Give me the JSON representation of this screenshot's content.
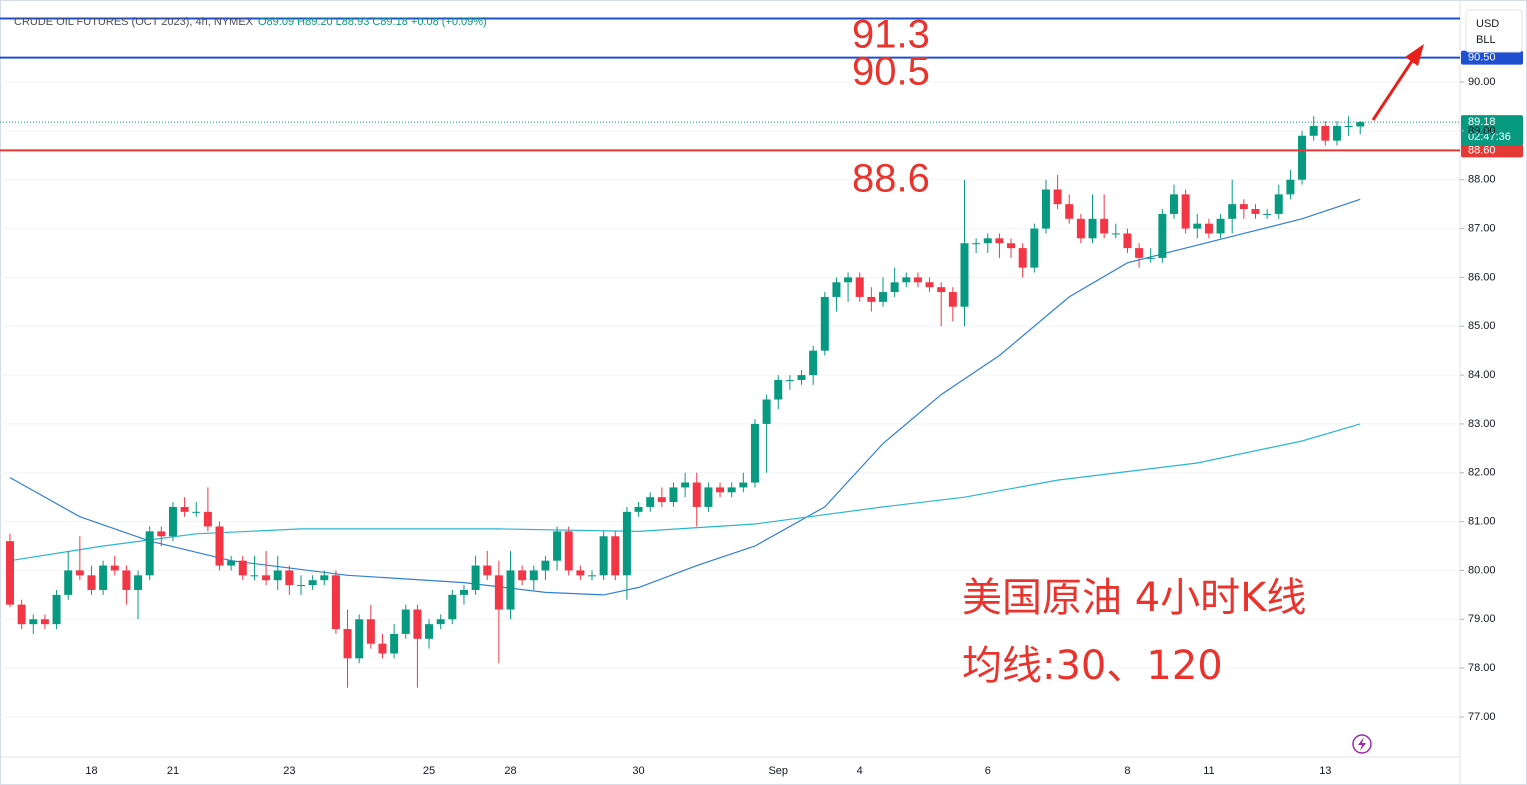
{
  "header": {
    "title": "CRUDE OIL FUTURES (OCT 2023), 4h, NYMEX",
    "ohlc_text": "O89.09 H89.20 L88.93 C89.18 +0.08 (+0.09%)"
  },
  "currency": "USD",
  "unit": "BLL",
  "chart_data": {
    "type": "candlestick",
    "ylim": [
      76.18,
      91.68
    ],
    "yticks": [
      {
        "value": 77,
        "label": "77.00"
      },
      {
        "value": 78,
        "label": "78.00"
      },
      {
        "value": 79,
        "label": "79.00"
      },
      {
        "value": 80,
        "label": "80.00"
      },
      {
        "value": 81,
        "label": "81.00"
      },
      {
        "value": 82,
        "label": "82.00"
      },
      {
        "value": 83,
        "label": "83.00"
      },
      {
        "value": 84,
        "label": "84.00"
      },
      {
        "value": 85,
        "label": "85.00"
      },
      {
        "value": 86,
        "label": "86.00"
      },
      {
        "value": 87,
        "label": "87.00"
      },
      {
        "value": 88,
        "label": "88.00"
      },
      {
        "value": 89,
        "label": "89.00"
      },
      {
        "value": 90,
        "label": "90.00"
      }
    ],
    "grid": true,
    "up_color": "#089981",
    "down_color": "#f23645",
    "categories": [
      null,
      null,
      null,
      null,
      null,
      null,
      null,
      "18",
      null,
      null,
      null,
      null,
      null,
      null,
      "21",
      null,
      null,
      null,
      null,
      null,
      null,
      null,
      null,
      null,
      "23",
      null,
      null,
      null,
      null,
      null,
      null,
      null,
      null,
      null,
      null,
      null,
      "25",
      null,
      null,
      null,
      null,
      null,
      null,
      "28",
      null,
      null,
      null,
      null,
      null,
      null,
      null,
      null,
      null,
      null,
      "30",
      null,
      null,
      null,
      null,
      null,
      null,
      null,
      null,
      null,
      null,
      null,
      "Sep",
      null,
      null,
      null,
      null,
      null,
      null,
      "4",
      null,
      null,
      null,
      null,
      null,
      null,
      null,
      null,
      null,
      null,
      "6",
      null,
      null,
      null,
      null,
      null,
      null,
      null,
      null,
      null,
      null,
      null,
      "8",
      null,
      null,
      null,
      null,
      null,
      null,
      "11",
      null,
      null,
      null,
      null,
      null,
      null,
      null,
      null,
      null,
      "13",
      null,
      null,
      null
    ],
    "ohlc": [
      [
        80.6,
        80.75,
        79.25,
        79.3
      ],
      [
        79.3,
        79.4,
        78.8,
        78.9
      ],
      [
        78.9,
        79.1,
        78.7,
        79.0
      ],
      [
        79.0,
        79.1,
        78.8,
        78.9
      ],
      [
        78.9,
        79.6,
        78.8,
        79.5
      ],
      [
        79.5,
        80.4,
        79.4,
        80.0
      ],
      [
        80.0,
        80.7,
        79.8,
        79.9
      ],
      [
        79.9,
        80.1,
        79.5,
        79.6
      ],
      [
        79.6,
        80.2,
        79.5,
        80.1
      ],
      [
        80.1,
        80.3,
        79.9,
        80.0
      ],
      [
        80.0,
        80.1,
        79.3,
        79.6
      ],
      [
        79.6,
        80.0,
        79.0,
        79.9
      ],
      [
        79.9,
        80.9,
        79.8,
        80.8
      ],
      [
        80.8,
        80.9,
        80.5,
        80.7
      ],
      [
        80.7,
        81.4,
        80.6,
        81.3
      ],
      [
        81.3,
        81.5,
        81.1,
        81.2
      ],
      [
        81.2,
        81.4,
        81.1,
        81.2
      ],
      [
        81.2,
        81.7,
        80.8,
        80.9
      ],
      [
        80.9,
        81.0,
        80.0,
        80.1
      ],
      [
        80.1,
        80.3,
        80.0,
        80.2
      ],
      [
        80.2,
        80.3,
        79.8,
        79.9
      ],
      [
        79.9,
        80.3,
        79.8,
        79.9
      ],
      [
        79.9,
        80.4,
        79.7,
        79.8
      ],
      [
        79.8,
        80.3,
        79.6,
        80.0
      ],
      [
        80.0,
        80.1,
        79.5,
        79.7
      ],
      [
        79.7,
        79.9,
        79.5,
        79.7
      ],
      [
        79.7,
        79.9,
        79.6,
        79.8
      ],
      [
        79.8,
        80.0,
        79.7,
        79.9
      ],
      [
        79.9,
        80.0,
        78.7,
        78.8
      ],
      [
        78.8,
        79.2,
        77.6,
        78.2
      ],
      [
        78.2,
        79.1,
        78.1,
        79.0
      ],
      [
        79.0,
        79.3,
        78.4,
        78.5
      ],
      [
        78.5,
        78.7,
        78.2,
        78.3
      ],
      [
        78.3,
        78.9,
        78.2,
        78.7
      ],
      [
        78.7,
        79.3,
        78.6,
        79.2
      ],
      [
        79.2,
        79.3,
        77.6,
        78.6
      ],
      [
        78.6,
        79.0,
        78.4,
        78.9
      ],
      [
        78.9,
        79.1,
        78.8,
        79.0
      ],
      [
        79.0,
        79.6,
        78.9,
        79.5
      ],
      [
        79.5,
        79.7,
        79.3,
        79.6
      ],
      [
        79.6,
        80.3,
        79.5,
        80.1
      ],
      [
        80.1,
        80.4,
        79.8,
        79.9
      ],
      [
        79.9,
        80.2,
        78.1,
        79.2
      ],
      [
        79.2,
        80.4,
        79.0,
        80.0
      ],
      [
        80.0,
        80.1,
        79.7,
        79.8
      ],
      [
        79.8,
        80.1,
        79.6,
        80.0
      ],
      [
        80.0,
        80.3,
        79.8,
        80.2
      ],
      [
        80.2,
        80.9,
        80.0,
        80.8
      ],
      [
        80.8,
        80.9,
        79.9,
        80.0
      ],
      [
        80.0,
        80.1,
        79.8,
        79.9
      ],
      [
        79.9,
        80.0,
        79.8,
        79.9
      ],
      [
        79.9,
        80.8,
        79.8,
        80.7
      ],
      [
        80.7,
        80.8,
        79.8,
        79.9
      ],
      [
        79.9,
        81.3,
        79.4,
        81.2
      ],
      [
        81.2,
        81.4,
        81.1,
        81.3
      ],
      [
        81.3,
        81.6,
        81.2,
        81.5
      ],
      [
        81.5,
        81.7,
        81.3,
        81.4
      ],
      [
        81.4,
        81.8,
        81.3,
        81.7
      ],
      [
        81.7,
        82.0,
        81.5,
        81.8
      ],
      [
        81.8,
        82.0,
        80.9,
        81.3
      ],
      [
        81.3,
        81.8,
        81.2,
        81.7
      ],
      [
        81.7,
        81.8,
        81.5,
        81.6
      ],
      [
        81.6,
        81.8,
        81.5,
        81.7
      ],
      [
        81.7,
        82.0,
        81.6,
        81.8
      ],
      [
        81.8,
        83.1,
        81.7,
        83.0
      ],
      [
        83.0,
        83.6,
        82.0,
        83.5
      ],
      [
        83.5,
        84.0,
        83.3,
        83.9
      ],
      [
        83.9,
        84.0,
        83.7,
        83.9
      ],
      [
        83.9,
        84.1,
        83.8,
        84.0
      ],
      [
        84.0,
        84.6,
        83.8,
        84.5
      ],
      [
        84.5,
        85.7,
        84.4,
        85.6
      ],
      [
        85.6,
        86.0,
        85.3,
        85.9
      ],
      [
        85.9,
        86.1,
        85.5,
        86.0
      ],
      [
        86.0,
        86.1,
        85.5,
        85.6
      ],
      [
        85.6,
        85.8,
        85.3,
        85.5
      ],
      [
        85.5,
        86.0,
        85.4,
        85.7
      ],
      [
        85.7,
        86.2,
        85.6,
        85.9
      ],
      [
        85.9,
        86.1,
        85.8,
        86.0
      ],
      [
        86.0,
        86.1,
        85.8,
        85.9
      ],
      [
        85.9,
        86.0,
        85.7,
        85.8
      ],
      [
        85.8,
        85.9,
        85.0,
        85.7
      ],
      [
        85.7,
        85.8,
        85.1,
        85.4
      ],
      [
        85.4,
        88.0,
        85.0,
        86.7
      ],
      [
        86.7,
        86.8,
        86.5,
        86.7
      ],
      [
        86.7,
        86.9,
        86.5,
        86.8
      ],
      [
        86.8,
        86.9,
        86.4,
        86.7
      ],
      [
        86.7,
        86.8,
        86.4,
        86.6
      ],
      [
        86.6,
        86.7,
        86.0,
        86.2
      ],
      [
        86.2,
        87.1,
        86.1,
        87.0
      ],
      [
        87.0,
        88.0,
        86.9,
        87.8
      ],
      [
        87.8,
        88.1,
        87.4,
        87.5
      ],
      [
        87.5,
        87.7,
        87.1,
        87.2
      ],
      [
        87.2,
        87.3,
        86.7,
        86.8
      ],
      [
        86.8,
        87.7,
        86.7,
        87.2
      ],
      [
        87.2,
        87.7,
        86.8,
        86.9
      ],
      [
        86.9,
        87.1,
        86.8,
        86.9
      ],
      [
        86.9,
        87.0,
        86.5,
        86.6
      ],
      [
        86.6,
        86.7,
        86.2,
        86.4
      ],
      [
        86.4,
        86.6,
        86.3,
        86.4
      ],
      [
        86.4,
        87.4,
        86.3,
        87.3
      ],
      [
        87.3,
        87.9,
        87.2,
        87.7
      ],
      [
        87.7,
        87.8,
        86.9,
        87.0
      ],
      [
        87.0,
        87.3,
        86.8,
        87.1
      ],
      [
        87.1,
        87.2,
        86.8,
        86.9
      ],
      [
        86.9,
        87.3,
        86.8,
        87.2
      ],
      [
        87.2,
        88.0,
        86.9,
        87.5
      ],
      [
        87.5,
        87.6,
        87.2,
        87.4
      ],
      [
        87.4,
        87.5,
        87.2,
        87.3
      ],
      [
        87.3,
        87.4,
        87.2,
        87.3
      ],
      [
        87.3,
        87.9,
        87.2,
        87.7
      ],
      [
        87.7,
        88.2,
        87.6,
        88.0
      ],
      [
        88.0,
        89.0,
        87.9,
        88.9
      ],
      [
        88.9,
        89.3,
        88.8,
        89.1
      ],
      [
        89.1,
        89.2,
        88.7,
        88.8
      ],
      [
        88.8,
        89.2,
        88.7,
        89.1
      ],
      [
        89.1,
        89.3,
        88.9,
        89.1
      ],
      [
        89.09,
        89.2,
        88.93,
        89.18
      ]
    ],
    "lines": [
      {
        "color": "#2f7fd6",
        "x": [
          0,
          6,
          12,
          19,
          29,
          39,
          46,
          51,
          54,
          59,
          64,
          70,
          75,
          80,
          85,
          91,
          96,
          101,
          106,
          111,
          116
        ],
        "values": [
          81.9,
          81.1,
          80.6,
          80.2,
          79.9,
          79.75,
          79.55,
          79.5,
          79.65,
          80.1,
          80.5,
          81.3,
          82.6,
          83.6,
          84.4,
          85.6,
          86.3,
          86.6,
          86.9,
          87.2,
          87.6
        ]
      },
      {
        "color": "#29b6d1",
        "x": [
          0,
          8,
          16,
          25,
          33,
          42,
          54,
          64,
          75,
          82,
          90,
          102,
          111,
          116
        ],
        "values": [
          80.2,
          80.5,
          80.75,
          80.85,
          80.85,
          80.85,
          80.8,
          80.95,
          81.3,
          81.5,
          81.85,
          82.2,
          82.65,
          83.0
        ]
      }
    ],
    "levels": [
      {
        "value": 91.3,
        "color": "#1f4fd1"
      },
      {
        "value": 90.5,
        "tag": "90.50",
        "color": "#1f4fd1"
      },
      {
        "value": 88.6,
        "tag": "88.60",
        "color": "#e53935"
      }
    ],
    "last_price": 89.18,
    "countdown": "02:47:36",
    "annotations": [
      "美国原油 4小时K线",
      "均线:30、120"
    ]
  }
}
